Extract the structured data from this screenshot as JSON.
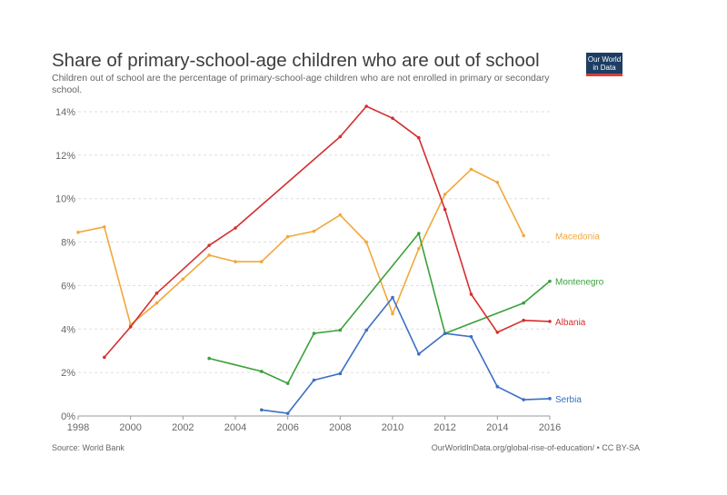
{
  "header": {
    "title": "Share of primary-school-age children who are out of school",
    "subtitle": "Children out of school are the percentage of primary-school-age children who are not enrolled in primary or secondary school.",
    "logo_line1": "Our World",
    "logo_line2": "in Data"
  },
  "footer": {
    "source": "Source: World Bank",
    "note": "OurWorldInData.org/global-rise-of-education/ • CC BY-SA"
  },
  "colors": {
    "Macedonia": "#f2a73b",
    "Montenegro": "#3aa13a",
    "Albania": "#d42f2f",
    "Serbia": "#3b6fc4",
    "grid": "#dddddd",
    "axis": "#666666"
  },
  "chart_data": {
    "type": "line",
    "title": "Share of primary-school-age children who are out of school",
    "xlim": [
      1998,
      2016
    ],
    "ylim": [
      0,
      14
    ],
    "x_ticks": [
      "1998",
      "2000",
      "2002",
      "2004",
      "2006",
      "2008",
      "2010",
      "2012",
      "2014",
      "2016"
    ],
    "y_ticks": [
      "0%",
      "2%",
      "4%",
      "6%",
      "8%",
      "10%",
      "12%",
      "14%"
    ],
    "grid": "horizontal dotted",
    "series": [
      {
        "name": "Macedonia",
        "x": [
          1998,
          1999,
          2000,
          2001,
          2002,
          2003,
          2004,
          2005,
          2006,
          2007,
          2008,
          2009,
          2010,
          2011,
          2012,
          2013,
          2014,
          2015
        ],
        "y": [
          8.45,
          8.7,
          4.2,
          5.2,
          6.3,
          7.4,
          7.1,
          7.1,
          8.25,
          8.5,
          9.25,
          8.0,
          4.7,
          7.7,
          10.2,
          11.35,
          10.75,
          8.3
        ]
      },
      {
        "name": "Montenegro",
        "x": [
          2003,
          2005,
          2006,
          2007,
          2008,
          2011,
          2012,
          2015,
          2016
        ],
        "y": [
          2.65,
          2.05,
          1.5,
          3.8,
          3.95,
          8.4,
          3.8,
          5.2,
          6.2
        ]
      },
      {
        "name": "Albania",
        "x": [
          1999,
          2000,
          2001,
          2003,
          2004,
          2008,
          2009,
          2010,
          2011,
          2012,
          2013,
          2014,
          2015,
          2016
        ],
        "y": [
          2.7,
          4.1,
          5.65,
          7.85,
          8.65,
          12.85,
          14.25,
          13.7,
          12.8,
          9.5,
          5.6,
          3.85,
          4.4,
          4.35
        ]
      },
      {
        "name": "Serbia",
        "x": [
          2005,
          2006,
          2007,
          2008,
          2009,
          2010,
          2011,
          2012,
          2013,
          2014,
          2015,
          2016
        ],
        "y": [
          0.28,
          0.12,
          1.65,
          1.95,
          3.95,
          5.45,
          2.85,
          3.8,
          3.65,
          1.35,
          0.75,
          0.8
        ]
      }
    ]
  }
}
